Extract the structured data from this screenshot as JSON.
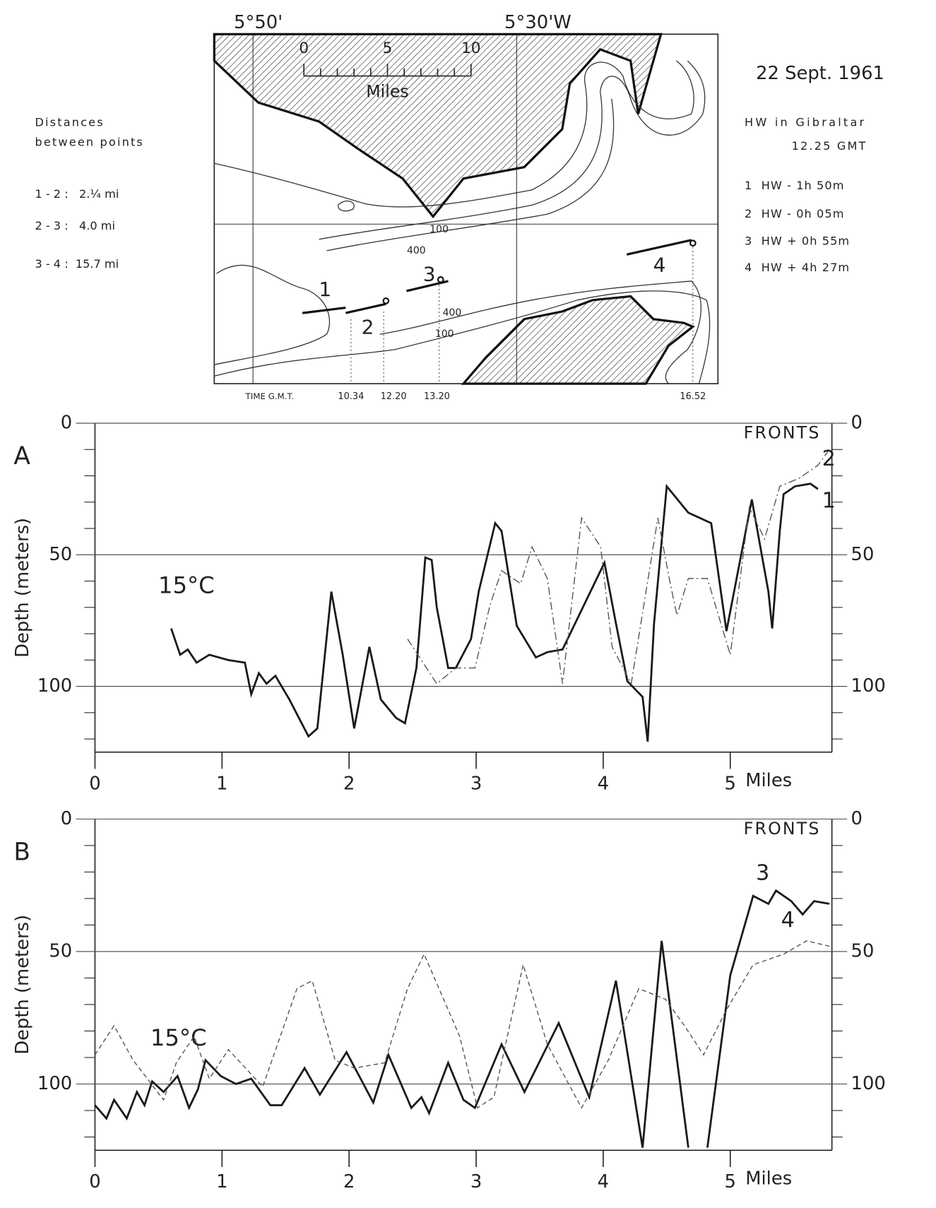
{
  "map": {
    "lon_labels": [
      "5°50'",
      "5°30'W"
    ],
    "scale": {
      "ticks": [
        "0",
        "5",
        "10"
      ],
      "unit": "Miles"
    },
    "distances": {
      "title": [
        "Distances",
        "between points"
      ],
      "rows": [
        "1 - 2 :   2.¼ mi",
        "2 - 3 :   4.0 mi",
        "3 - 4 :  15.7 mi"
      ]
    },
    "date": "22 Sept. 1961",
    "hw_title": "HW in Gibraltar",
    "hw_time": "12.25 GMT",
    "hw_rows": [
      "1  HW - 1h 50m",
      "2  HW - 0h 05m",
      "3  HW + 0h 55m",
      "4  HW + 4h 27m"
    ],
    "contours": [
      "100",
      "400",
      "400",
      "100"
    ],
    "points": [
      "1",
      "2",
      "3",
      "4"
    ],
    "time_label": "TIME G.M.T.",
    "times": [
      "10.34",
      "12.20",
      "13.20",
      "16.52"
    ]
  },
  "chart_data": [
    {
      "type": "line",
      "label": "A",
      "ylabel": "Depth (meters)",
      "annotation": "FRONTS",
      "temperature": "15°C",
      "xlabel": "Miles",
      "xlim": [
        0,
        5.8
      ],
      "xticks": [
        0,
        1,
        2,
        3,
        4,
        5
      ],
      "ylim": [
        0,
        125
      ],
      "yticks": [
        0,
        50,
        100
      ],
      "minor_yticks": [
        10,
        20,
        30,
        40,
        60,
        70,
        80,
        90,
        110,
        120
      ],
      "y_inverted": true,
      "grid": true,
      "series": [
        {
          "name": "1",
          "color": "#1a1a1a",
          "dash": "solid",
          "x": [
            0.6,
            0.67,
            0.73,
            0.8,
            0.9,
            1.05,
            1.18,
            1.23,
            1.29,
            1.35,
            1.42,
            1.53,
            1.68,
            1.75,
            1.86,
            1.95,
            2.04,
            2.16,
            2.25,
            2.37,
            2.44,
            2.53,
            2.6,
            2.65,
            2.69,
            2.78,
            2.84,
            2.96,
            3.02,
            3.15,
            3.2,
            3.32,
            3.47,
            3.56,
            3.68,
            4.01,
            4.1,
            4.19,
            4.31,
            4.35,
            4.4,
            4.5,
            4.67,
            4.85,
            4.97,
            5.17,
            5.3,
            5.33,
            5.39,
            5.42,
            5.51,
            5.63,
            5.69
          ],
          "values": [
            78,
            88,
            86,
            91,
            88,
            90,
            91,
            103,
            95,
            99,
            96,
            105,
            119,
            116,
            64,
            88,
            116,
            85,
            105,
            112,
            114,
            93,
            51,
            52,
            70,
            93,
            93,
            82,
            64,
            38,
            41,
            77,
            89,
            87,
            86,
            53,
            76,
            98,
            104,
            121,
            76,
            24,
            34,
            38,
            79,
            29,
            64,
            78,
            41,
            27,
            24,
            23,
            25
          ]
        },
        {
          "name": "2",
          "color": "#555555",
          "dash": "dashdot",
          "x": [
            2.46,
            2.69,
            2.84,
            2.99,
            3.11,
            3.2,
            3.35,
            3.44,
            3.56,
            3.68,
            3.83,
            3.98,
            4.07,
            4.22,
            4.43,
            4.52,
            4.58,
            4.67,
            4.82,
            5.0,
            5.15,
            5.27,
            5.39,
            5.54,
            5.69,
            5.78
          ],
          "values": [
            82,
            99,
            93,
            93,
            69,
            56,
            61,
            47,
            59,
            99,
            36,
            47,
            85,
            99,
            36,
            59,
            73,
            59,
            59,
            88,
            32,
            44,
            24,
            21,
            16,
            10
          ]
        }
      ]
    },
    {
      "type": "line",
      "label": "B",
      "ylabel": "Depth (meters)",
      "annotation": "FRONTS",
      "temperature": "15°C",
      "xlabel": "Miles",
      "xlim": [
        0,
        5.8
      ],
      "xticks": [
        0,
        1,
        2,
        3,
        4,
        5
      ],
      "ylim": [
        0,
        125
      ],
      "yticks": [
        0,
        50,
        100
      ],
      "minor_yticks": [
        10,
        20,
        30,
        40,
        60,
        70,
        80,
        90,
        110,
        120
      ],
      "y_inverted": true,
      "grid": true,
      "series": [
        {
          "name": "3",
          "color": "#1a1a1a",
          "dash": "solid",
          "x": [
            0,
            0.09,
            0.15,
            0.25,
            0.33,
            0.39,
            0.45,
            0.54,
            0.65,
            0.74,
            0.81,
            0.87,
            0.99,
            1.11,
            1.23,
            1.38,
            1.47,
            1.65,
            1.77,
            1.98,
            2.19,
            2.31,
            2.49,
            2.57,
            2.63,
            2.78,
            2.9,
            2.99,
            3.2,
            3.38,
            3.65,
            3.89,
            4.1,
            4.31,
            4.46,
            4.67,
            4.75,
            4.82,
            5.0,
            5.18,
            5.3,
            5.36,
            5.48,
            5.57,
            5.66,
            5.78
          ],
          "values": [
            108,
            113,
            106,
            113,
            103,
            108,
            99,
            103,
            97,
            109,
            102,
            91,
            97,
            100,
            98,
            108,
            108,
            94,
            104,
            88,
            107,
            89,
            109,
            105,
            111,
            92,
            106,
            109,
            85,
            103,
            77,
            105,
            61,
            124,
            46,
            124,
            null,
            124,
            59,
            29,
            32,
            27,
            31,
            36,
            31,
            32
          ]
        },
        {
          "name": "4",
          "color": "#555555",
          "dash": "dashed",
          "x": [
            0,
            0.15,
            0.3,
            0.54,
            0.64,
            0.78,
            0.9,
            1.05,
            1.32,
            1.59,
            1.71,
            1.89,
            2.04,
            2.28,
            2.46,
            2.59,
            2.78,
            2.87,
            3.01,
            3.14,
            3.37,
            3.56,
            3.83,
            4.04,
            4.28,
            4.49,
            4.64,
            4.79,
            4.97,
            5.18,
            5.42,
            5.6,
            5.78
          ],
          "values": [
            89,
            78,
            91,
            106,
            92,
            82,
            98,
            87,
            101,
            64,
            61,
            91,
            94,
            92,
            64,
            51,
            72,
            82,
            109,
            105,
            55,
            85,
            109,
            91,
            64,
            68,
            78,
            89,
            72,
            55,
            51,
            46,
            48
          ]
        }
      ]
    }
  ]
}
